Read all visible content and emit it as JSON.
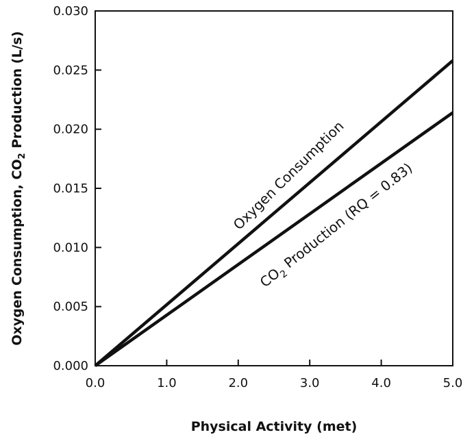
{
  "chart_data": {
    "type": "line",
    "xlabel": "Physical Activity (met)",
    "ylabel_parts": {
      "before": "Oxygen Consumption, CO",
      "sub": "2",
      "after": " Production (L/s)"
    },
    "xlim": [
      0.0,
      5.0
    ],
    "ylim": [
      0.0,
      0.03
    ],
    "x_ticks": [
      "0.0",
      "1.0",
      "2.0",
      "3.0",
      "4.0",
      "5.0"
    ],
    "y_ticks": [
      "0.000",
      "0.005",
      "0.010",
      "0.015",
      "0.020",
      "0.025",
      "0.030"
    ],
    "grid": false,
    "series": [
      {
        "label_parts": {
          "before": "Oxygen Consumption",
          "sub": "",
          "after": ""
        },
        "x": [
          0.0,
          5.0
        ],
        "y": [
          0.0,
          0.0258
        ],
        "color": "#111111"
      },
      {
        "label_parts": {
          "before": "CO",
          "sub": "2",
          "after": " Production (RQ = 0.83)"
        },
        "x": [
          0.0,
          5.0
        ],
        "y": [
          0.0,
          0.0214
        ],
        "color": "#111111"
      }
    ]
  }
}
